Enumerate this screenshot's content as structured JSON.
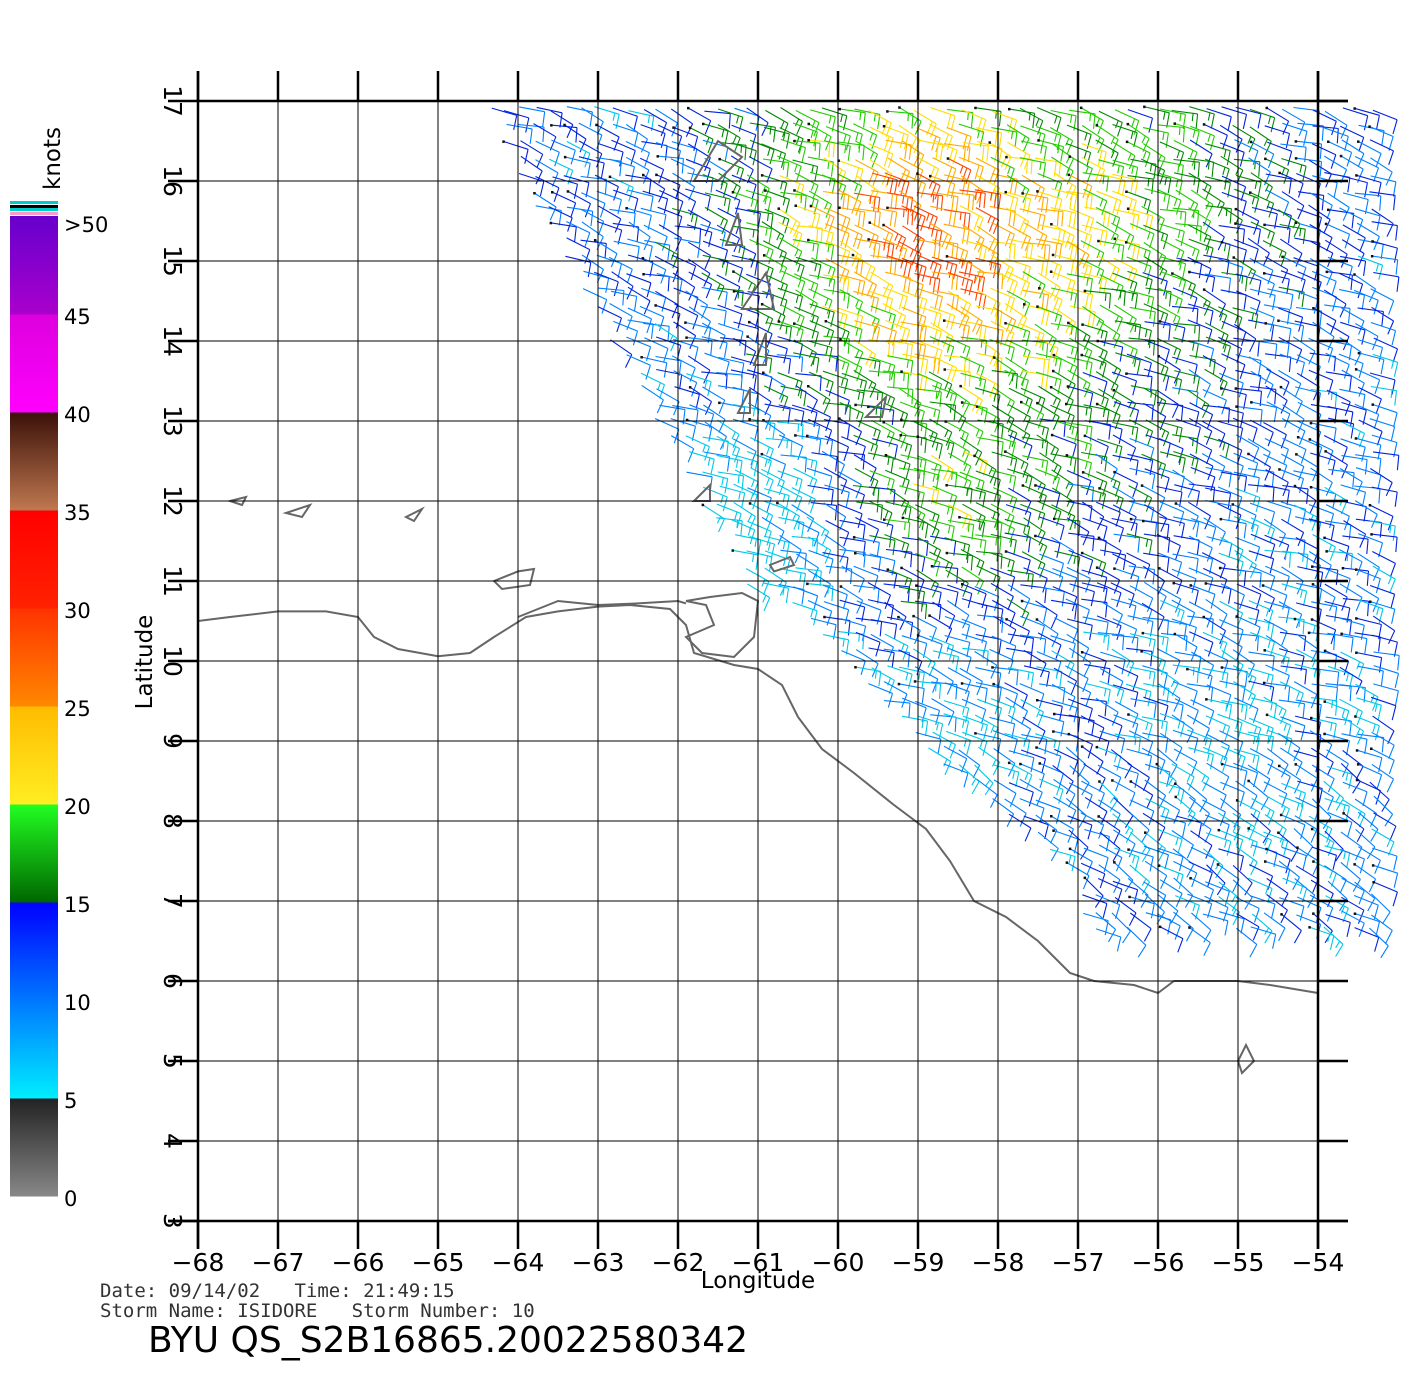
{
  "map": {
    "x_axis_label": "Longitude",
    "y_axis_label": "Latitude",
    "lon_ticks": [
      "−68",
      "−67",
      "−66",
      "−65",
      "−64",
      "−63",
      "−62",
      "−61",
      "−60",
      "−59",
      "−58",
      "−57",
      "−56",
      "−55",
      "−54"
    ],
    "lat_ticks": [
      "3",
      "4",
      "5",
      "6",
      "7",
      "8",
      "9",
      "10",
      "11",
      "12",
      "13",
      "14",
      "15",
      "16",
      "17"
    ],
    "lon_range": [
      -68,
      -54
    ],
    "lat_range": [
      3,
      17
    ],
    "grid": true,
    "coastline_color": "#666666",
    "content": "QuikSCAT wind barbs over the Lesser Antilles / Venezuela–Guyana coast"
  },
  "colorbar": {
    "unit_label": "knots",
    "labels": [
      ">50",
      "45",
      "40",
      "35",
      "30",
      "25",
      "20",
      "15",
      "10",
      "5",
      "0"
    ],
    "bands": [
      {
        "from": 0,
        "to": 5,
        "colors": [
          "#888888",
          "#222222"
        ]
      },
      {
        "from": 5,
        "to": 10,
        "colors": [
          "#00eeff",
          "#0077ff"
        ]
      },
      {
        "from": 10,
        "to": 15,
        "colors": [
          "#0077ff",
          "#0000ff"
        ]
      },
      {
        "from": 15,
        "to": 20,
        "colors": [
          "#006600",
          "#22ff22"
        ]
      },
      {
        "from": 20,
        "to": 25,
        "colors": [
          "#ffee22",
          "#ffbb00"
        ]
      },
      {
        "from": 25,
        "to": 30,
        "colors": [
          "#ff8800",
          "#ff3300"
        ]
      },
      {
        "from": 30,
        "to": 35,
        "colors": [
          "#ff2200",
          "#ff0000"
        ]
      },
      {
        "from": 35,
        "to": 40,
        "colors": [
          "#c07850",
          "#3a1008"
        ]
      },
      {
        "from": 40,
        "to": 45,
        "colors": [
          "#ff00ff",
          "#dd00dd"
        ]
      },
      {
        "from": 45,
        "to": 50,
        "colors": [
          "#aa00cc",
          "#6600cc"
        ]
      }
    ]
  },
  "footer": {
    "date_line": "Date: 09/14/02   Time: 21:49:15",
    "storm_line": "Storm Name: ISIDORE   Storm Number: 10",
    "product_id": "BYU QS_S2B16865.20022580342"
  }
}
